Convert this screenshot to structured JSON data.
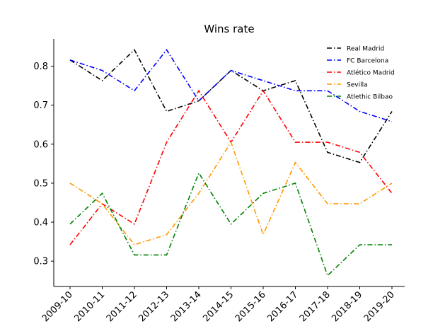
{
  "chart_data": {
    "type": "line",
    "title": "Wins rate",
    "xlabel": "",
    "ylabel": "",
    "categories": [
      "2009-10",
      "2010-11",
      "2011-12",
      "2012-13",
      "2013-14",
      "2014-15",
      "2015-16",
      "2016-17",
      "2017-18",
      "2018-19",
      "2019-20"
    ],
    "ylim": [
      0.235,
      0.87
    ],
    "yticks": [
      0.3,
      0.4,
      0.5,
      0.6,
      0.7,
      0.8
    ],
    "ytick_labels": [
      "0.3",
      "0.4",
      "0.5",
      "0.6",
      "0.7",
      "0.8"
    ],
    "grid": false,
    "legend_position": "top-right",
    "series": [
      {
        "name": "Real Madrid",
        "color": "#000000",
        "values": [
          0.816,
          0.763,
          0.842,
          0.684,
          0.711,
          0.789,
          0.737,
          0.763,
          0.579,
          0.553,
          0.684
        ]
      },
      {
        "name": "FC Barcelona",
        "color": "#0000ff",
        "values": [
          0.816,
          0.789,
          0.737,
          0.842,
          0.711,
          0.789,
          0.763,
          0.737,
          0.737,
          0.684,
          0.658
        ]
      },
      {
        "name": "Atlético Madrid",
        "color": "#ff0000",
        "values": [
          0.342,
          0.447,
          0.395,
          0.605,
          0.737,
          0.605,
          0.737,
          0.605,
          0.605,
          0.579,
          0.474
        ]
      },
      {
        "name": "Sevilla",
        "color": "#ff9900",
        "values": [
          0.5,
          0.447,
          0.342,
          0.368,
          0.474,
          0.605,
          0.368,
          0.553,
          0.447,
          0.447,
          0.5
        ]
      },
      {
        "name": "Atlethic Bilbao",
        "color": "#008000",
        "values": [
          0.395,
          0.474,
          0.316,
          0.316,
          0.526,
          0.395,
          0.474,
          0.5,
          0.263,
          0.342,
          0.342
        ]
      }
    ]
  }
}
